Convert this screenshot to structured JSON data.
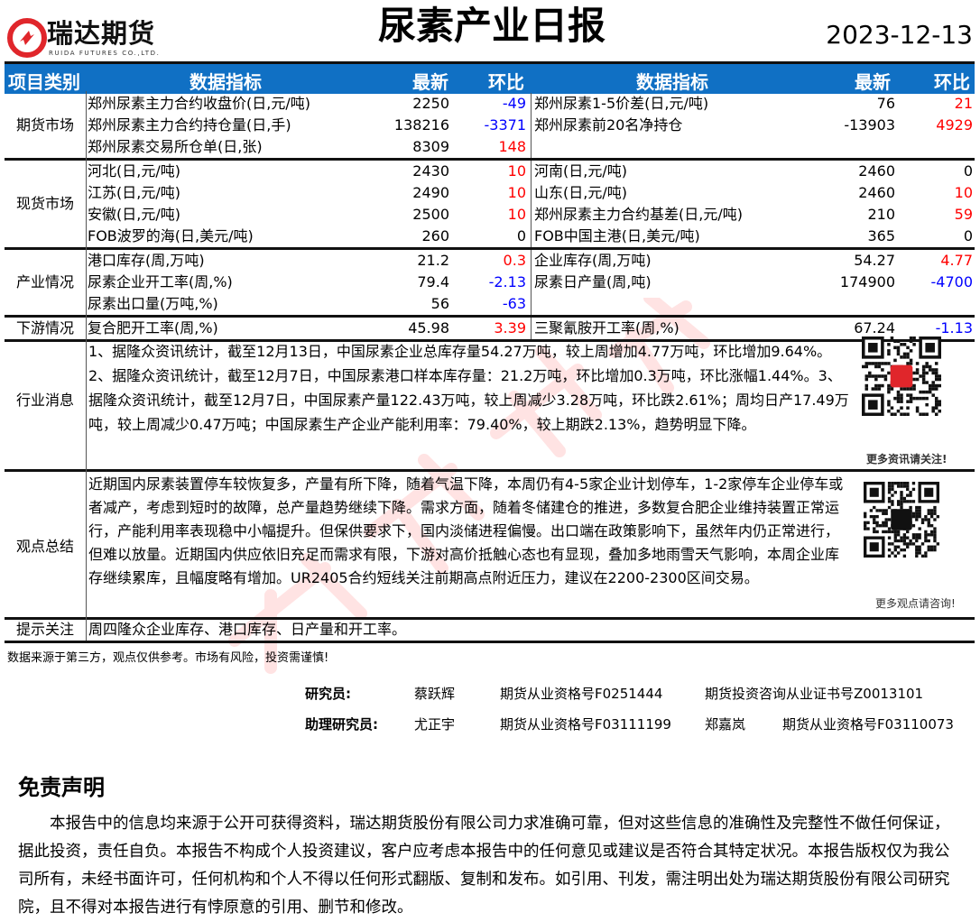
{
  "header": {
    "logo_text": "瑞达期货",
    "logo_sub": "RUIDA FUTURES CO.,LTD.",
    "title": "尿素产业日报",
    "date": "2023-12-13"
  },
  "table": {
    "columns": {
      "category": "项目类别",
      "indicator": "数据指标",
      "latest": "最新",
      "change": "环比"
    },
    "sections": [
      {
        "category": "期货市场",
        "rows": [
          [
            [
              "郑州尿素主力合约收盘价(日,元/吨)",
              "2250",
              "-49"
            ],
            [
              "郑州尿素1-5价差(日,元/吨)",
              "76",
              "21"
            ]
          ],
          [
            [
              "郑州尿素主力合约持仓量(日,手)",
              "138216",
              "-3371"
            ],
            [
              "郑州尿素前20名净持仓",
              "-13903",
              "4929"
            ]
          ],
          [
            [
              "郑州尿素交易所仓单(日,张)",
              "8309",
              "148"
            ],
            null
          ]
        ]
      },
      {
        "category": "现货市场",
        "rows": [
          [
            [
              "河北(日,元/吨)",
              "2430",
              "10"
            ],
            [
              "河南(日,元/吨)",
              "2460",
              "0"
            ]
          ],
          [
            [
              "江苏(日,元/吨)",
              "2490",
              "10"
            ],
            [
              "山东(日,元/吨)",
              "2460",
              "10"
            ]
          ],
          [
            [
              "安徽(日,元/吨)",
              "2500",
              "10"
            ],
            [
              "郑州尿素主力合约基差(日,元/吨)",
              "210",
              "59"
            ]
          ],
          [
            [
              "FOB波罗的海(日,美元/吨)",
              "260",
              "0"
            ],
            [
              "FOB中国主港(日,美元/吨)",
              "365",
              "0"
            ]
          ]
        ]
      },
      {
        "category": "产业情况",
        "rows": [
          [
            [
              "港口库存(周,万吨)",
              "21.2",
              "0.3"
            ],
            [
              "企业库存(周,万吨)",
              "54.27",
              "4.77"
            ]
          ],
          [
            [
              "尿素企业开工率(周,%)",
              "79.4",
              "-2.13"
            ],
            [
              "尿素日产量(周,吨)",
              "174900",
              "-4700"
            ]
          ],
          [
            [
              "尿素出口量(万吨,%)",
              "56",
              "-63"
            ],
            null
          ]
        ]
      },
      {
        "category": "下游情况",
        "rows": [
          [
            [
              "复合肥开工率(周,%)",
              "45.98",
              "3.39"
            ],
            [
              "三聚氰胺开工率(周,%)",
              "67.24",
              "-1.13"
            ]
          ]
        ]
      }
    ]
  },
  "news": {
    "category": "行业消息",
    "text": "1、据隆众资讯统计，截至12月13日，中国尿素企业总库存量54.27万吨，较上周增加4.77万吨，环比增加9.64%。2、据隆众资讯统计，截至12月7日，中国尿素港口样本库存量：21.2万吨，环比增加0.3万吨，环比涨幅1.44%。3、据隆众资讯统计，截至12月7日，中国尿素产量122.43万吨，较上周减少3.28万吨，环比跌2.61%；周均日产17.49万吨，较上周减少0.47万吨；中国尿素生产企业产能利用率：79.40%，较上期跌2.13%，趋势明显下降。",
    "qr_caption": "更多资讯请关注!"
  },
  "opinion": {
    "category": "观点总结",
    "text": "近期国内尿素装置停车较恢复多，产量有所下降，随着气温下降，本周仍有4-5家企业计划停车，1-2家停车企业停车或者减产，考虑到短时的故障，总产量趋势继续下降。需求方面，随着冬储建仓的推进，多数复合肥企业维持装置正常运行，产能利用率表现稳中小幅提升。但保供要求下，国内淡储进程偏慢。出口端在政策影响下，虽然年内仍正常进行，但难以放量。近期国内供应依旧充足而需求有限，下游对高价抵触心态也有显现，叠加多地雨雪天气影响，本周企业库存继续累库，且幅度略有增加。UR2405合约短线关注前期高点附近压力，建议在2200-2300区间交易。",
    "qr_caption": "更多观点请咨询!"
  },
  "tip": {
    "category": "提示关注",
    "text": "周四隆众企业库存、港口库存、日产量和开工率。"
  },
  "footnote": "数据来源于第三方，观点仅供参考。市场有风险，投资需谨慎!",
  "signatures": {
    "researcher_label": "研究员:",
    "researcher": "蔡跃辉",
    "researcher_cert1": "期货从业资格号F0251444",
    "researcher_cert2": "期货投资咨询从业证书号Z0013101",
    "assistant_label": "助理研究员:",
    "assistant1": "尤正宇",
    "assistant1_cert": "期货从业资格号F03111199",
    "assistant2": "郑嘉岚",
    "assistant2_cert": "期货从业资格号F03110073"
  },
  "disclaimer": {
    "title": "免责声明",
    "text": "本报告中的信息均来源于公开可获得资料，瑞达期货股份有限公司力求准确可靠，但对这些信息的准确性及完整性不做任何保证，据此投资，责任自负。本报告不构成个人投资建议，客户应考虑本报告中的任何意见或建议是否符合其特定状况。本报告版权仅为我公司所有，未经书面许可，任何机构和个人不得以任何形式翻版、复制和发布。如引用、刊发，需注明出处为瑞达期货股份有限公司研究院，且不得对本报告进行有悖原意的引用、删节和修改。"
  },
  "watermark": "瑞达研究",
  "colors": {
    "header_blue": "#1070c4",
    "positive": "#ff0000",
    "negative": "#0000ff",
    "logo_red": "#e0262b"
  }
}
